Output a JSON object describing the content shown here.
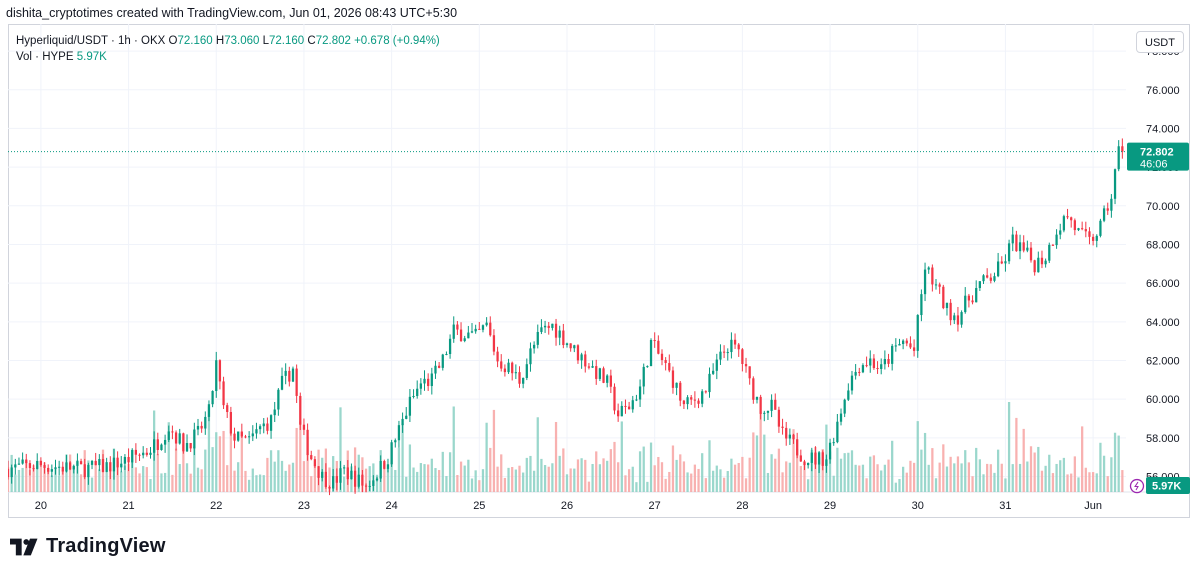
{
  "header": {
    "attribution": "dishita_cryptotimes created with TradingView.com, Jun 01, 2026 08:43 UTC+5:30"
  },
  "legend": {
    "symbol": "Hyperliquid/USDT · 1h · OKX",
    "o_label": "O",
    "o_value": "72.160",
    "h_label": "H",
    "h_value": "73.060",
    "l_label": "L",
    "l_value": "72.160",
    "c_label": "C",
    "c_value": "72.802",
    "change": "+0.678 (+0.94%)",
    "vol_label": "Vol · HYPE",
    "vol_value": "5.97K"
  },
  "currency_button": "USDT",
  "price_badge": {
    "price": "72.802",
    "countdown": "46:06"
  },
  "volume_badge": "5.97K",
  "brand": {
    "name": "TradingView"
  },
  "colors": {
    "up": "#089981",
    "down": "#f23645",
    "grid": "#f0f3fa",
    "text": "#131722"
  },
  "chart_data": {
    "type": "candlestick",
    "title": "Hyperliquid/USDT · 1h · OKX",
    "y_ticks": [
      56,
      58,
      60,
      62,
      64,
      66,
      68,
      70,
      72,
      74,
      76,
      78
    ],
    "y_tick_labels": [
      "56.000",
      "58.000",
      "60.000",
      "62.000",
      "64.000",
      "66.000",
      "68.000",
      "70.000",
      "72.000",
      "74.000",
      "76.000",
      "78.000"
    ],
    "ylim": [
      55.2,
      79.4
    ],
    "x_ticks": [
      {
        "label": "20",
        "hour": 0
      },
      {
        "label": "21",
        "hour": 24
      },
      {
        "label": "22",
        "hour": 48
      },
      {
        "label": "23",
        "hour": 72
      },
      {
        "label": "24",
        "hour": 96
      },
      {
        "label": "25",
        "hour": 120
      },
      {
        "label": "26",
        "hour": 144
      },
      {
        "label": "27",
        "hour": 168
      },
      {
        "label": "28",
        "hour": 192
      },
      {
        "label": "29",
        "hour": 216
      },
      {
        "label": "30",
        "hour": 240
      },
      {
        "label": "31",
        "hour": 264
      },
      {
        "label": "Jun",
        "hour": 288
      }
    ],
    "x_range_hours": [
      -9,
      297
    ],
    "last_price": 72.802,
    "anchors": [
      [
        -9,
        56.4
      ],
      [
        -4,
        56.5
      ],
      [
        0,
        56.6
      ],
      [
        6,
        56.5
      ],
      [
        12,
        56.4
      ],
      [
        18,
        56.5
      ],
      [
        24,
        56.8
      ],
      [
        26,
        57.0
      ],
      [
        30,
        57.3
      ],
      [
        33,
        57.8
      ],
      [
        36,
        58.6
      ],
      [
        40,
        57.6
      ],
      [
        44,
        58.2
      ],
      [
        47,
        59.3
      ],
      [
        49,
        61.8
      ],
      [
        51,
        59.5
      ],
      [
        54,
        58.0
      ],
      [
        58,
        57.8
      ],
      [
        61,
        58.5
      ],
      [
        64,
        58.9
      ],
      [
        67,
        60.8
      ],
      [
        70,
        61.6
      ],
      [
        72,
        58.5
      ],
      [
        75,
        57.0
      ],
      [
        78,
        56.0
      ],
      [
        81,
        55.7
      ],
      [
        84,
        56.3
      ],
      [
        87,
        55.9
      ],
      [
        90,
        55.5
      ],
      [
        93,
        56.2
      ],
      [
        96,
        57.0
      ],
      [
        99,
        58.4
      ],
      [
        102,
        59.8
      ],
      [
        105,
        60.8
      ],
      [
        108,
        61.0
      ],
      [
        111,
        62.0
      ],
      [
        114,
        63.5
      ],
      [
        117,
        63.4
      ],
      [
        120,
        63.2
      ],
      [
        123,
        63.8
      ],
      [
        126,
        62.0
      ],
      [
        129,
        61.6
      ],
      [
        132,
        61.0
      ],
      [
        135,
        62.4
      ],
      [
        138,
        63.5
      ],
      [
        141,
        63.8
      ],
      [
        144,
        63.2
      ],
      [
        147,
        62.5
      ],
      [
        150,
        62.0
      ],
      [
        153,
        61.4
      ],
      [
        156,
        60.8
      ],
      [
        159,
        59.2
      ],
      [
        162,
        59.6
      ],
      [
        165,
        60.6
      ],
      [
        168,
        62.9
      ],
      [
        171,
        62.0
      ],
      [
        174,
        61.0
      ],
      [
        177,
        59.6
      ],
      [
        180,
        60.0
      ],
      [
        183,
        60.5
      ],
      [
        186,
        61.8
      ],
      [
        189,
        62.8
      ],
      [
        192,
        62.5
      ],
      [
        195,
        60.8
      ],
      [
        198,
        59.6
      ],
      [
        201,
        59.6
      ],
      [
        204,
        58.1
      ],
      [
        207,
        57.6
      ],
      [
        210,
        57.0
      ],
      [
        213,
        56.9
      ],
      [
        216,
        57.0
      ],
      [
        219,
        58.8
      ],
      [
        222,
        60.8
      ],
      [
        225,
        61.8
      ],
      [
        228,
        62.0
      ],
      [
        231,
        61.5
      ],
      [
        234,
        62.4
      ],
      [
        237,
        63.0
      ],
      [
        240,
        62.5
      ],
      [
        243,
        66.8
      ],
      [
        246,
        65.8
      ],
      [
        249,
        64.6
      ],
      [
        252,
        64.3
      ],
      [
        255,
        65.2
      ],
      [
        258,
        65.9
      ],
      [
        261,
        66.3
      ],
      [
        264,
        66.9
      ],
      [
        267,
        68.2
      ],
      [
        270,
        67.6
      ],
      [
        273,
        67.0
      ],
      [
        276,
        67.4
      ],
      [
        279,
        68.8
      ],
      [
        282,
        69.5
      ],
      [
        285,
        68.6
      ],
      [
        288,
        68.1
      ],
      [
        291,
        68.9
      ],
      [
        294,
        70.5
      ],
      [
        296,
        72.8
      ]
    ]
  }
}
